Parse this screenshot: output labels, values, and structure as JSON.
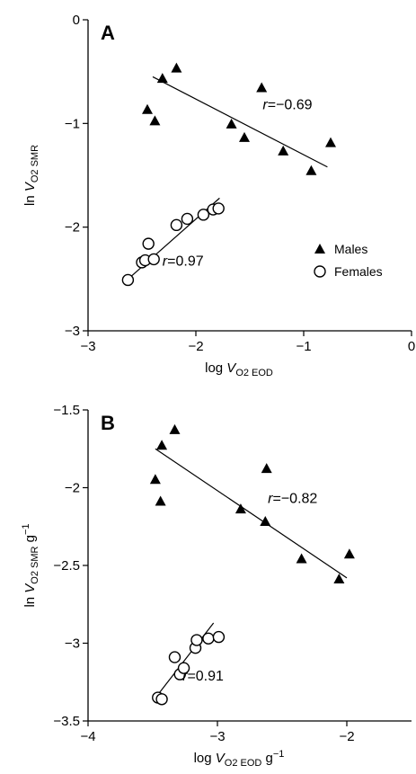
{
  "chart_data": [
    {
      "type": "scatter",
      "panel_label": "A",
      "xlabel": {
        "prefix": "log ",
        "var": "V",
        "sub": "O2 EOD",
        "suffix": ""
      },
      "ylabel": {
        "prefix": "ln ",
        "var": "V",
        "sub": "O2 SMR",
        "suffix": ""
      },
      "xlim": [
        -3,
        0
      ],
      "ylim": [
        -3,
        0
      ],
      "xticks": [
        -3,
        -2,
        -1,
        0
      ],
      "yticks": [
        -3,
        -2,
        -1,
        0
      ],
      "xtick_labels": [
        "−3",
        "−2",
        "−1",
        "0"
      ],
      "ytick_labels": [
        "−3",
        "−2",
        "−1",
        "0"
      ],
      "legend": {
        "position": "right-center",
        "entries": [
          "Males",
          "Females"
        ]
      },
      "series": [
        {
          "name": "Males",
          "marker": "filled-triangle",
          "points": [
            [
              -2.45,
              -0.87
            ],
            [
              -2.38,
              -0.98
            ],
            [
              -2.31,
              -0.57
            ],
            [
              -2.18,
              -0.47
            ],
            [
              -1.67,
              -1.01
            ],
            [
              -1.55,
              -1.14
            ],
            [
              -1.39,
              -0.66
            ],
            [
              -1.19,
              -1.27
            ],
            [
              -0.93,
              -1.46
            ],
            [
              -0.75,
              -1.19
            ]
          ],
          "fit": {
            "x": [
              -2.4,
              -0.78
            ],
            "y": [
              -0.55,
              -1.42
            ]
          },
          "r_label": {
            "r": "r",
            "value": "=−0.69"
          }
        },
        {
          "name": "Females",
          "marker": "open-circle",
          "points": [
            [
              -2.63,
              -2.51
            ],
            [
              -2.5,
              -2.34
            ],
            [
              -2.47,
              -2.32
            ],
            [
              -2.44,
              -2.16
            ],
            [
              -2.39,
              -2.31
            ],
            [
              -2.18,
              -1.98
            ],
            [
              -2.08,
              -1.92
            ],
            [
              -1.93,
              -1.88
            ],
            [
              -1.84,
              -1.83
            ],
            [
              -1.79,
              -1.82
            ]
          ],
          "fit": {
            "x": [
              -2.65,
              -1.78
            ],
            "y": [
              -2.52,
              -1.72
            ]
          },
          "r_label": {
            "r": "r",
            "value": "=0.97"
          }
        }
      ]
    },
    {
      "type": "scatter",
      "panel_label": "B",
      "xlabel": {
        "prefix": "log ",
        "var": "V",
        "sub": "O2 EOD",
        "suffix": " g",
        "sup": "−1"
      },
      "ylabel": {
        "prefix": "ln ",
        "var": "V",
        "sub": "O2 SMR",
        "suffix": " g",
        "sup": "−1"
      },
      "xlim": [
        -4,
        -1.5
      ],
      "ylim": [
        -3.5,
        -1.5
      ],
      "xticks": [
        -4,
        -3,
        -2
      ],
      "yticks": [
        -3.5,
        -3,
        -2.5,
        -2,
        -1.5
      ],
      "xtick_labels": [
        "−4",
        "−3",
        "−2"
      ],
      "ytick_labels": [
        "−3.5",
        "−3",
        "−2.5",
        "−2",
        "−1.5"
      ],
      "series": [
        {
          "name": "Males",
          "marker": "filled-triangle",
          "points": [
            [
              -3.48,
              -1.95
            ],
            [
              -3.44,
              -2.09
            ],
            [
              -3.43,
              -1.73
            ],
            [
              -3.33,
              -1.63
            ],
            [
              -2.82,
              -2.14
            ],
            [
              -2.63,
              -2.22
            ],
            [
              -2.62,
              -1.88
            ],
            [
              -2.35,
              -2.46
            ],
            [
              -2.06,
              -2.59
            ],
            [
              -1.98,
              -2.43
            ]
          ],
          "fit": {
            "x": [
              -3.48,
              -2.0
            ],
            "y": [
              -1.75,
              -2.58
            ]
          },
          "r_label": {
            "r": "r",
            "value": "=−0.82"
          }
        },
        {
          "name": "Females",
          "marker": "open-circle",
          "points": [
            [
              -3.46,
              -3.35
            ],
            [
              -3.43,
              -3.36
            ],
            [
              -3.33,
              -3.09
            ],
            [
              -3.29,
              -3.2
            ],
            [
              -3.26,
              -3.16
            ],
            [
              -3.17,
              -3.03
            ],
            [
              -3.16,
              -2.98
            ],
            [
              -3.07,
              -2.97
            ],
            [
              -2.99,
              -2.96
            ]
          ],
          "fit": {
            "x": [
              -3.45,
              -3.03
            ],
            "y": [
              -3.32,
              -2.87
            ]
          },
          "r_label": {
            "r": "r",
            "value": "=0.91"
          }
        }
      ]
    }
  ]
}
